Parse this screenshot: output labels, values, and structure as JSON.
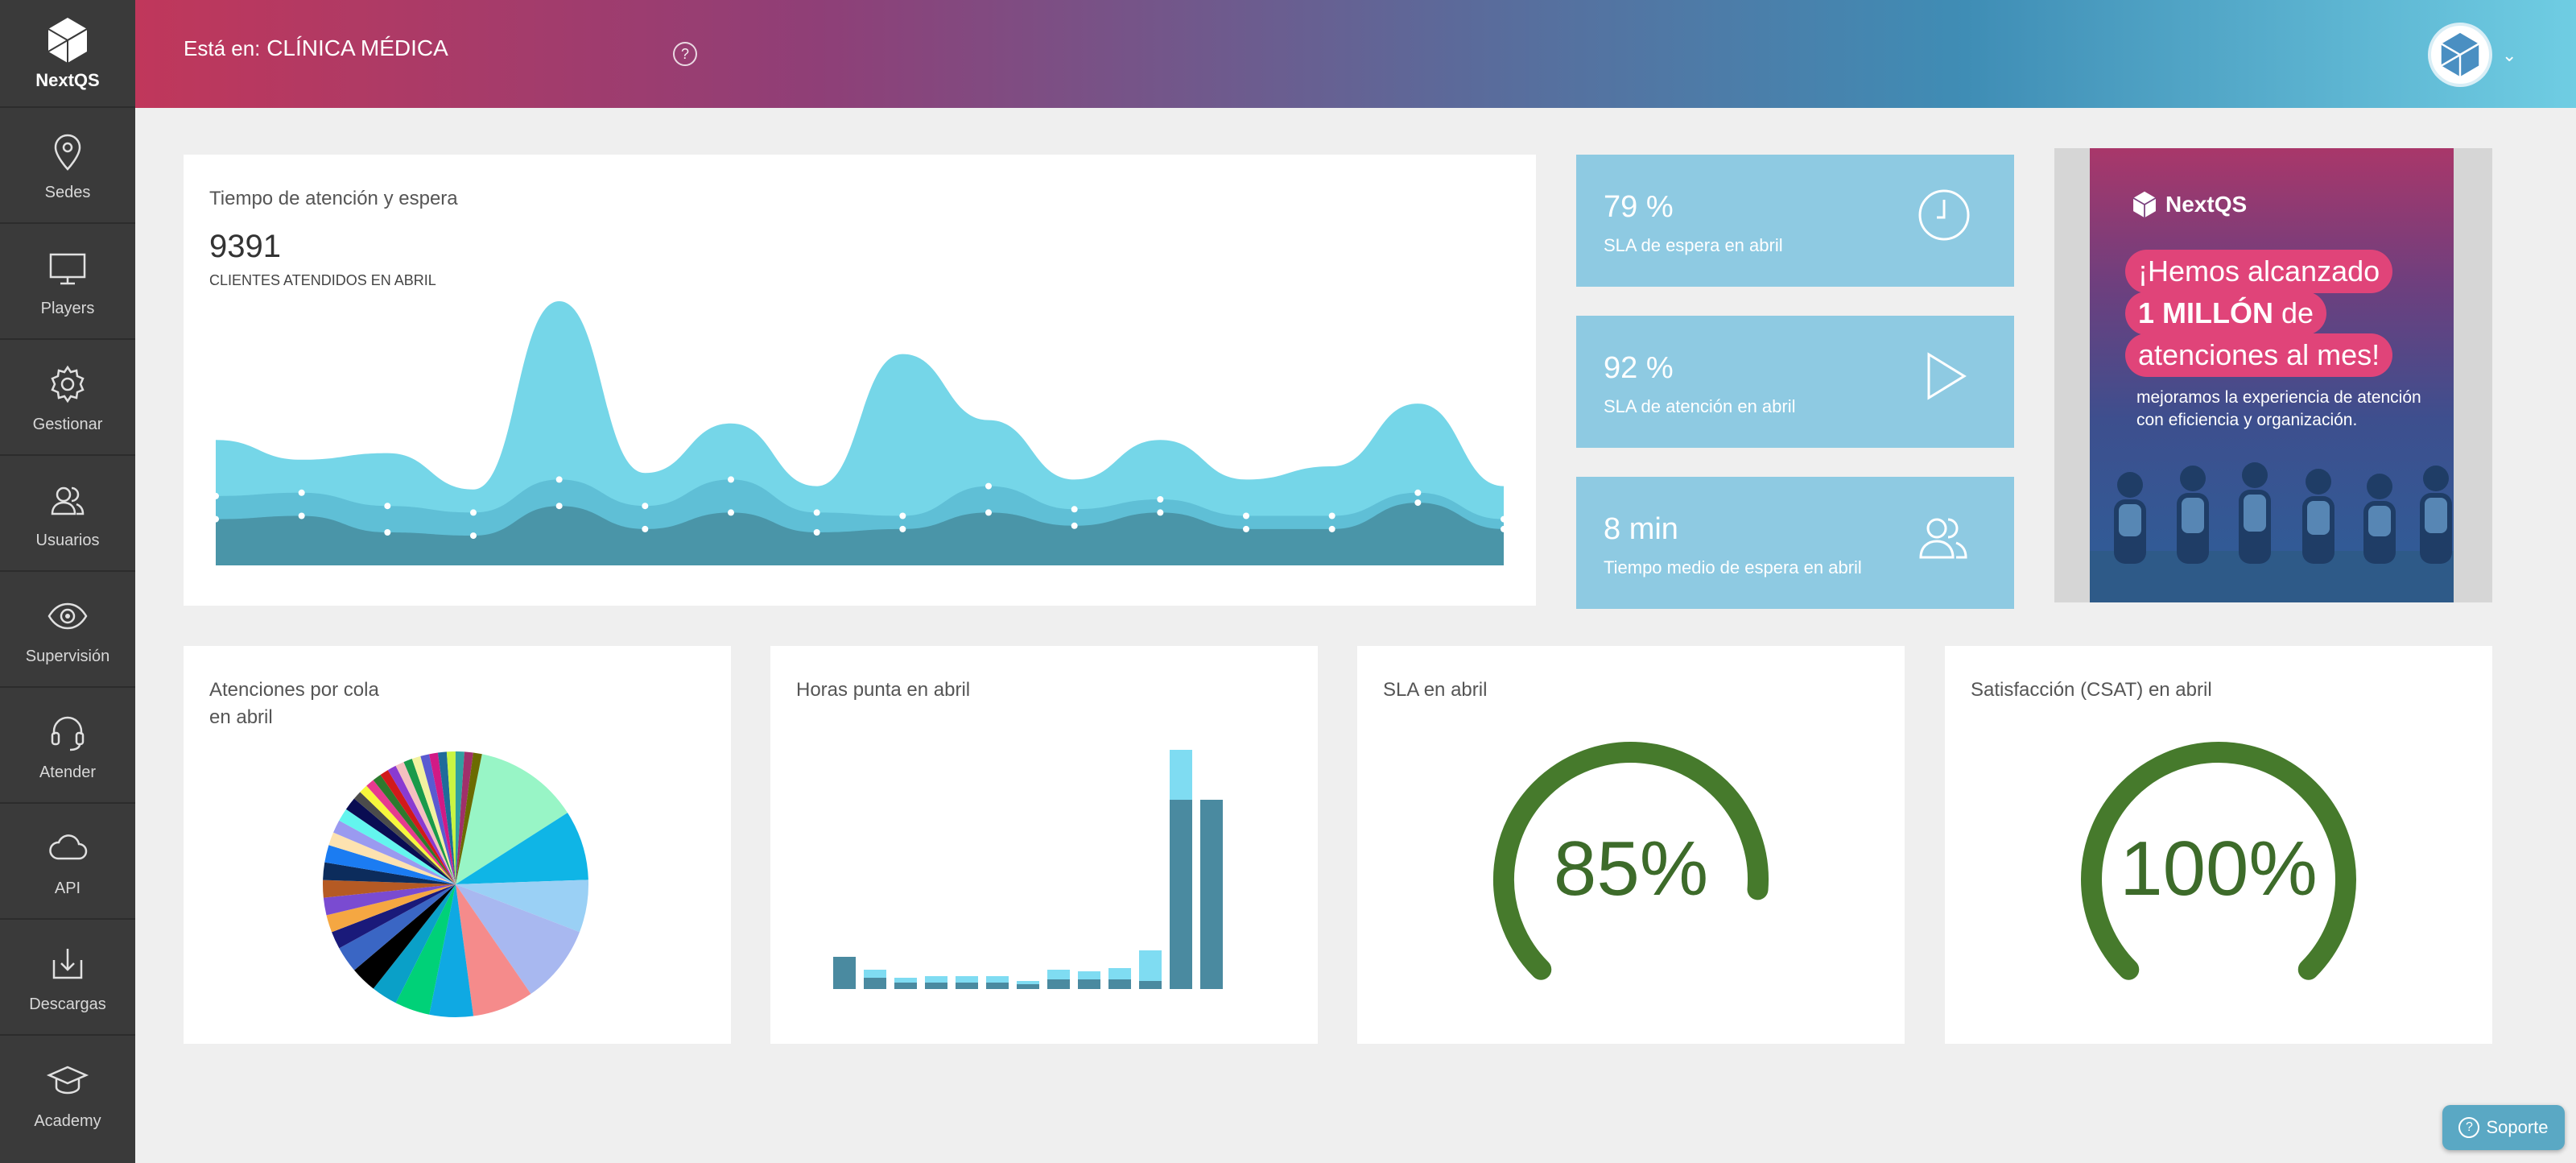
{
  "sidebar": {
    "brand": "NextQS",
    "items": [
      {
        "label": "Sedes",
        "icon": "map-pin-icon"
      },
      {
        "label": "Players",
        "icon": "monitor-icon"
      },
      {
        "label": "Gestionar",
        "icon": "gear-icon"
      },
      {
        "label": "Usuarios",
        "icon": "users-icon"
      },
      {
        "label": "Supervisión",
        "icon": "eye-icon"
      },
      {
        "label": "Atender",
        "icon": "headset-icon"
      },
      {
        "label": "API",
        "icon": "cloud-icon"
      },
      {
        "label": "Descargas",
        "icon": "download-icon"
      },
      {
        "label": "Academy",
        "icon": "graduation-cap-icon"
      }
    ]
  },
  "header": {
    "location_label": "Está en:",
    "location_value": "CLÍNICA MÉDICA",
    "help_symbol": "?"
  },
  "time_card": {
    "title": "Tiempo de atención y espera",
    "clients_value": "9391",
    "clients_label": "CLIENTES ATENDIDOS EN ABRIL"
  },
  "kpis": [
    {
      "value": "79 %",
      "label": "SLA de espera en abril",
      "icon": "clock-icon"
    },
    {
      "value": "92 %",
      "label": "SLA de atención en abril",
      "icon": "play-icon"
    },
    {
      "value": "8 min",
      "label": "Tiempo medio de espera en abril",
      "icon": "users-icon"
    }
  ],
  "promo": {
    "brand": "NextQS",
    "line1": "¡Hemos alcanzado",
    "line2_bold": "1 MILLÓN",
    "line2_rest": "de",
    "line3": "atenciones al mes!",
    "text": "mejoramos la experiencia de atención con eficiencia y organización."
  },
  "queues_card": {
    "title": "Atenciones por cola\nen abril"
  },
  "peak_card": {
    "title": "Horas punta en abril"
  },
  "sla_card": {
    "title": "SLA en abril",
    "value": "85%",
    "percent": 85
  },
  "csat_card": {
    "title": "Satisfacción (CSAT) en abril",
    "value": "100%",
    "percent": 100
  },
  "support": {
    "label": "Soporte"
  },
  "colors": {
    "area_top": "#75d6e8",
    "area_mid": "#5fbfd6",
    "area_low": "#4a95a8",
    "gauge": "#467a2c",
    "kpi": "#8ecae2"
  },
  "chart_data": [
    {
      "type": "area",
      "series": [
        {
          "values": [
            190,
            160,
            170,
            115,
            400,
            140,
            215,
            120,
            320,
            220,
            130,
            190,
            130,
            150,
            245,
            120
          ]
        },
        {
          "values": [
            105,
            110,
            90,
            80,
            130,
            90,
            130,
            80,
            75,
            120,
            85,
            100,
            75,
            75,
            110,
            70
          ]
        },
        {
          "values": [
            70,
            75,
            50,
            45,
            90,
            55,
            80,
            50,
            55,
            80,
            60,
            80,
            55,
            55,
            95,
            55
          ]
        }
      ]
    },
    {
      "type": "pie",
      "values": [
        12,
        8,
        6,
        9,
        7,
        5,
        4,
        3,
        3,
        3,
        2,
        2,
        2,
        2,
        2,
        2,
        1.5,
        1.5,
        1.5,
        1.5,
        1,
        1,
        1,
        1,
        1,
        1,
        1,
        1,
        1,
        1,
        1,
        1,
        1,
        1,
        1,
        1
      ],
      "colors": [
        "#98f5c6",
        "#0fb5e6",
        "#9ad0f5",
        "#a8b8f0",
        "#f58b8b",
        "#0fa9e3",
        "#00d178",
        "#0aa0c8",
        "#000000",
        "#3a66c4",
        "#1a1a7a",
        "#f5a742",
        "#7a4bd1",
        "#b55a24",
        "#0c2c5c",
        "#1b7cf2",
        "#fde2b0",
        "#9a9af0",
        "#63f5ee",
        "#090c52",
        "#4b4b4b",
        "#f7f73c",
        "#e63a8f",
        "#2d7a2d",
        "#d11a1a",
        "#8a3ad1",
        "#f5c0c0",
        "#1a9a4a",
        "#f2f2a0",
        "#5a5ad1",
        "#d11a86",
        "#1f6b9a",
        "#c9f542",
        "#30a0a0",
        "#a0306b",
        "#6b6b00"
      ]
    },
    {
      "type": "bar",
      "series": [
        {
          "name": "",
          "values": [
            40,
            14,
            8,
            8,
            8,
            8,
            6,
            12,
            12,
            12,
            10,
            235,
            235
          ]
        },
        {
          "name": "",
          "values": [
            0,
            10,
            6,
            8,
            8,
            8,
            4,
            12,
            10,
            14,
            38,
            62,
            0
          ]
        }
      ]
    }
  ]
}
